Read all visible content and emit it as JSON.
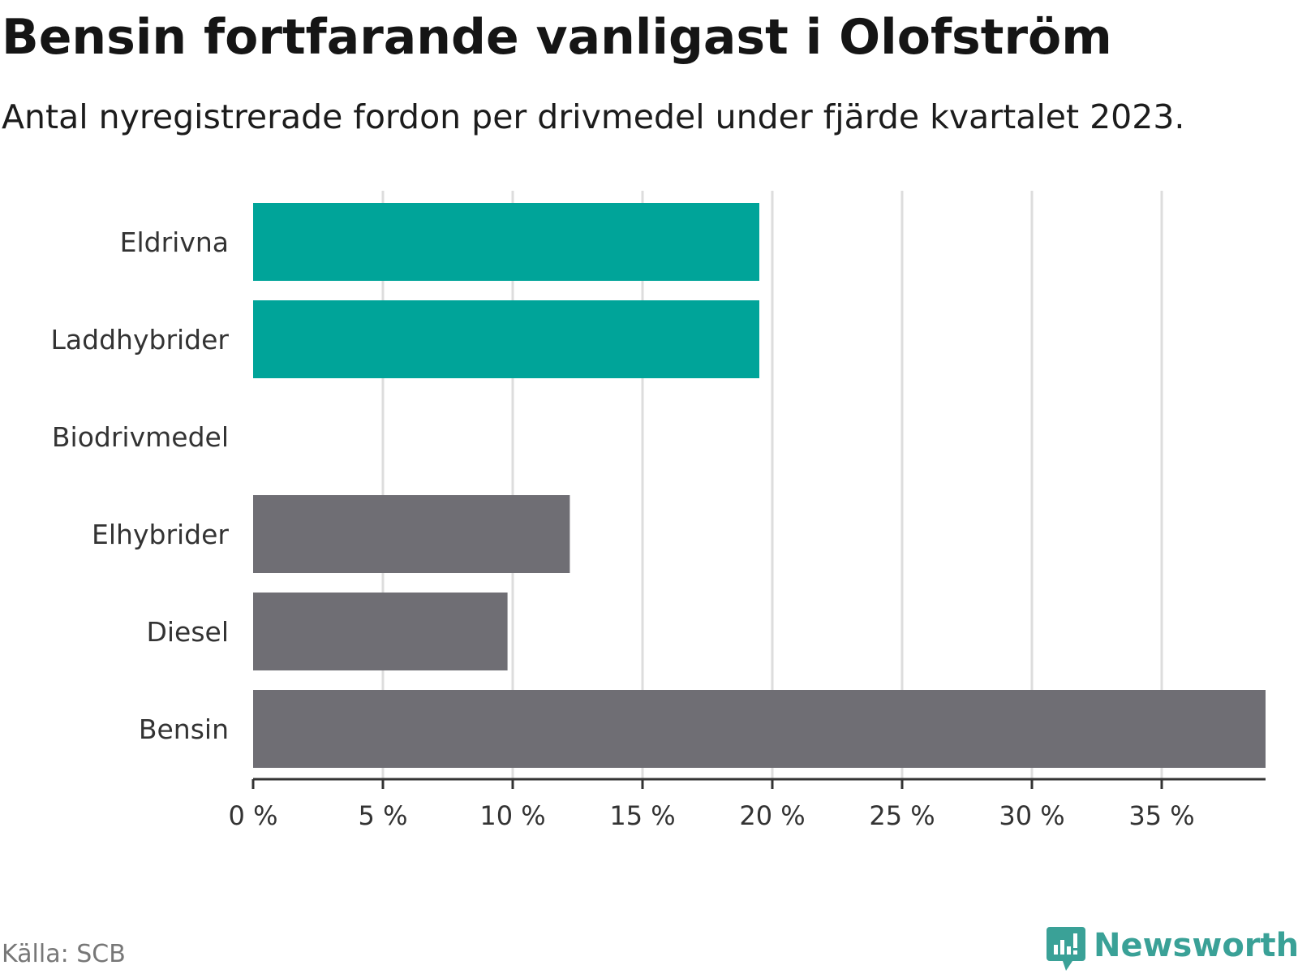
{
  "title": "Bensin fortfarande vanligast i Olofström",
  "subtitle": "Antal nyregistrerade fordon per drivmedel under fjärde kvartalet 2023.",
  "source": "Källa: SCB",
  "brand": {
    "name": "Newsworthy",
    "icon": "newsworthy-logo-icon",
    "color": "#3aa197"
  },
  "colors": {
    "highlight": "#00a499",
    "default": "#6f6e74",
    "grid": "#dddddd",
    "axis": "#333333"
  },
  "chart_data": {
    "type": "bar",
    "orientation": "horizontal",
    "title": "Bensin fortfarande vanligast i Olofström",
    "xlabel": "",
    "ylabel": "",
    "unit": "%",
    "categories": [
      "Eldrivna",
      "Laddhybrider",
      "Biodrivmedel",
      "Elhybrider",
      "Diesel",
      "Bensin"
    ],
    "values": [
      19.5,
      19.5,
      0,
      12.2,
      9.8,
      39.0
    ],
    "highlighted": [
      true,
      true,
      false,
      false,
      false,
      false
    ],
    "xlim": [
      0,
      39
    ],
    "ticks": [
      0,
      5,
      10,
      15,
      20,
      25,
      30,
      35
    ],
    "tick_labels": [
      "0 %",
      "5 %",
      "10 %",
      "15 %",
      "20 %",
      "25 %",
      "30 %",
      "35 %"
    ],
    "grid": true,
    "legend": "none"
  }
}
